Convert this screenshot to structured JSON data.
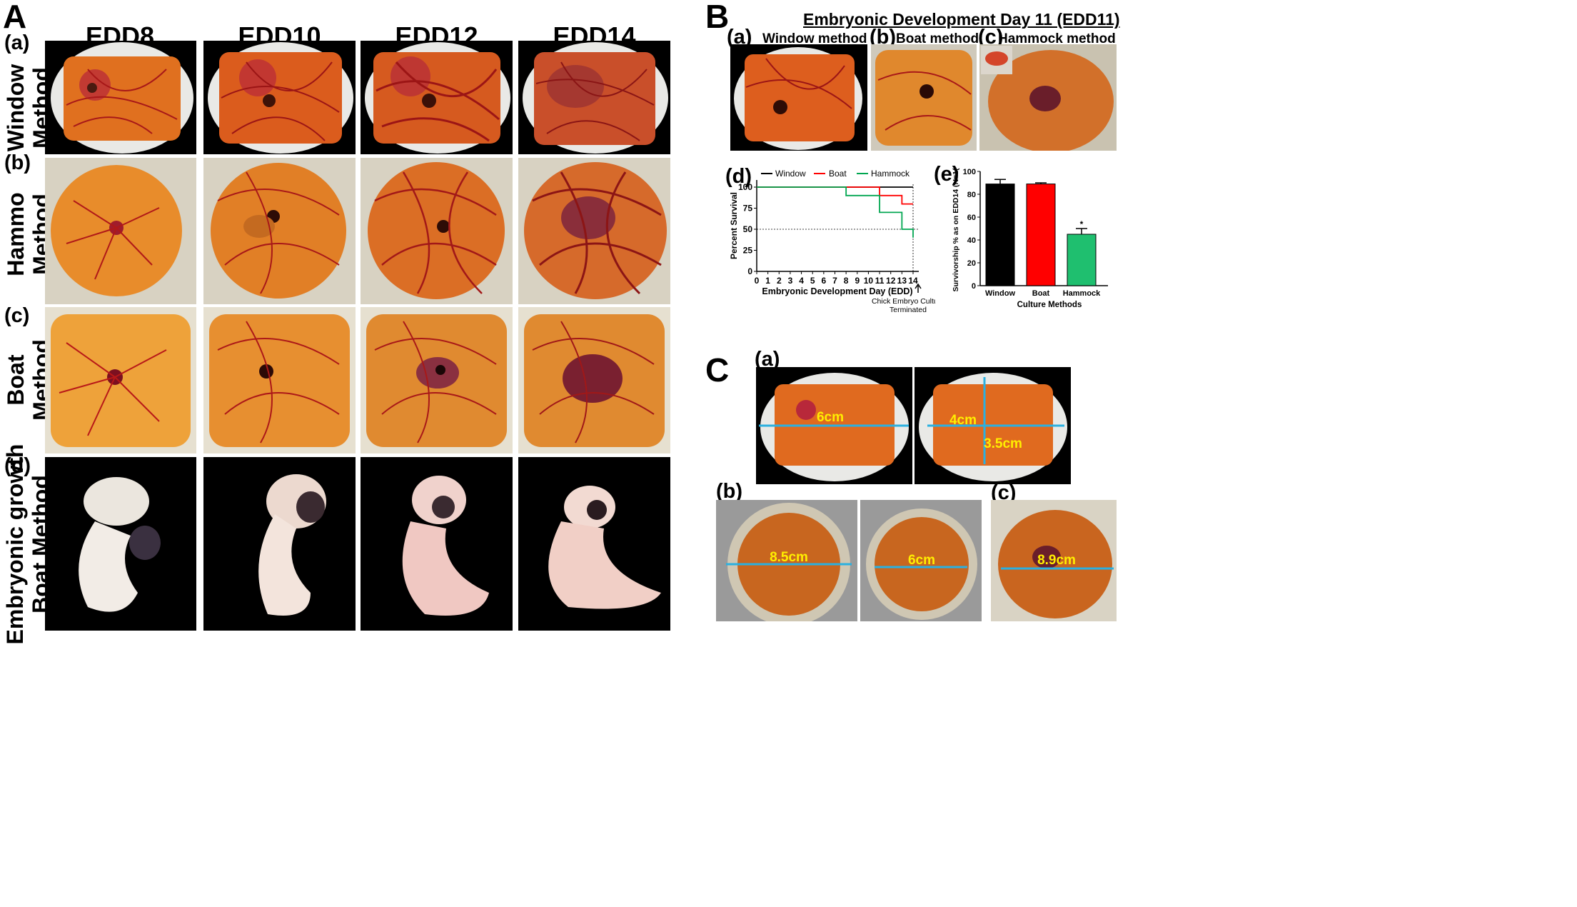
{
  "panel_A": {
    "letter": "A",
    "columns": [
      "EDD8",
      "EDD10",
      "EDD12",
      "EDD14"
    ],
    "rows": [
      {
        "tag": "(a)",
        "label_line1": "Window",
        "label_line2": "Method"
      },
      {
        "tag": "(b)",
        "label_line1": "Hammo",
        "label_line2": "Method"
      },
      {
        "tag": "(c)",
        "label_line1": "Boat",
        "label_line2": "Method"
      },
      {
        "tag": "(d)",
        "label_line1": "Embryonic growth",
        "label_line2": "Boat Method"
      }
    ]
  },
  "panel_B": {
    "letter": "B",
    "title": "Embryonic Development Day 11 (EDD11)",
    "photos": [
      {
        "tag": "(a)",
        "title": "Window method"
      },
      {
        "tag": "(b)",
        "title": "Boat method"
      },
      {
        "tag": "(c)",
        "title": "Hammock method"
      }
    ],
    "tag_d": "(d)",
    "tag_e": "(e)",
    "colors": {
      "window": "#000000",
      "boat": "#ff0000",
      "hammock": "#00a650"
    }
  },
  "panel_C": {
    "letter": "C",
    "tag_a": "(a)",
    "tag_b": "(b)",
    "tag_c": "(c)",
    "measures": {
      "a1_width": "6cm",
      "a2_width": "4cm",
      "a2_height": "3.5cm",
      "b1_width": "8.5cm",
      "b2_width": "6cm",
      "c_width": "8.9cm"
    }
  },
  "chart_data": [
    {
      "type": "line",
      "title": "",
      "xlabel": "Embryonic Development Day (EDD)",
      "ylabel": "Percent Survival",
      "xlim": [
        0,
        14
      ],
      "ylim": [
        0,
        100
      ],
      "x_ticks": [
        0,
        1,
        2,
        3,
        4,
        5,
        6,
        7,
        8,
        9,
        10,
        11,
        12,
        13,
        14
      ],
      "y_ticks": [
        0,
        25,
        50,
        75,
        100
      ],
      "reference_line": 50,
      "annotation": {
        "x": 14,
        "line1": "Chick Embryo Culture",
        "line2": "Terminated"
      },
      "legend": [
        "Window",
        "Boat",
        "Hammock"
      ],
      "series": [
        {
          "name": "Window",
          "color": "#000000",
          "steps": [
            [
              0,
              100
            ],
            [
              14,
              100
            ]
          ]
        },
        {
          "name": "Boat",
          "color": "#ff0000",
          "steps": [
            [
              0,
              100
            ],
            [
              11,
              100
            ],
            [
              11,
              90
            ],
            [
              13,
              90
            ],
            [
              13,
              80
            ],
            [
              14,
              80
            ]
          ]
        },
        {
          "name": "Hammock",
          "color": "#00a650",
          "steps": [
            [
              0,
              100
            ],
            [
              8,
              100
            ],
            [
              8,
              90
            ],
            [
              11,
              90
            ],
            [
              11,
              70
            ],
            [
              13,
              70
            ],
            [
              13,
              50
            ],
            [
              14,
              50
            ],
            [
              14,
              40
            ]
          ]
        }
      ]
    },
    {
      "type": "bar",
      "title": "",
      "xlabel": "Culture Methods",
      "ylabel": "Survivorship % as on EDD14 (N=1(",
      "ylim": [
        0,
        100
      ],
      "y_ticks": [
        0,
        20,
        40,
        60,
        80,
        100
      ],
      "categories": [
        "Window",
        "Boat",
        "Hammock"
      ],
      "values": [
        89,
        89,
        45
      ],
      "errors": [
        4,
        1,
        5
      ],
      "colors": [
        "#000000",
        "#ff0000",
        "#1fbf6f"
      ],
      "significance": [
        "",
        "",
        "*"
      ]
    }
  ]
}
